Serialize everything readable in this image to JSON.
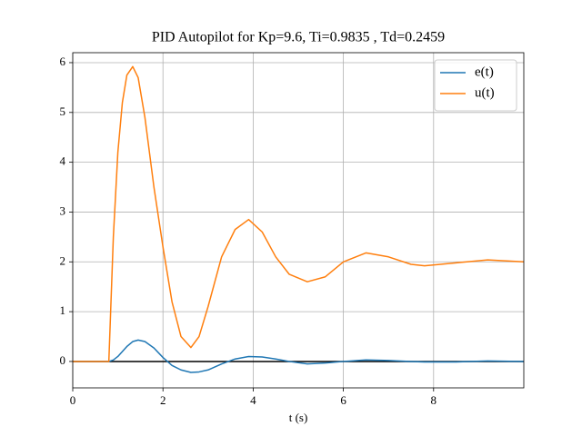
{
  "chart_data": {
    "type": "line",
    "title": "PID Autopilot for Kp=9.6, Ti=0.9835 , Td=0.2459",
    "x_label": "t (s)",
    "x": [
      0,
      0.8,
      0.9,
      1.0,
      1.1,
      1.2,
      1.33,
      1.45,
      1.6,
      1.8,
      2.0,
      2.2,
      2.4,
      2.62,
      2.8,
      3.0,
      3.3,
      3.6,
      3.9,
      4.2,
      4.5,
      4.8,
      5.2,
      5.6,
      6.0,
      6.5,
      7.0,
      7.5,
      7.8,
      8.5,
      9.2,
      10
    ],
    "series": [
      {
        "name": "e(t)",
        "color": "#1f77b4",
        "values": [
          0,
          0,
          0.03,
          0.1,
          0.2,
          0.3,
          0.4,
          0.43,
          0.4,
          0.27,
          0.08,
          -0.08,
          -0.17,
          -0.22,
          -0.21,
          -0.17,
          -0.05,
          0.05,
          0.1,
          0.09,
          0.05,
          0.0,
          -0.05,
          -0.03,
          0.0,
          0.03,
          0.02,
          0.0,
          -0.01,
          -0.01,
          0.01,
          0
        ]
      },
      {
        "name": "u(t)",
        "color": "#ff7f0e",
        "values": [
          0,
          0,
          2.5,
          4.2,
          5.2,
          5.75,
          5.92,
          5.7,
          4.9,
          3.5,
          2.3,
          1.2,
          0.5,
          0.28,
          0.5,
          1.1,
          2.1,
          2.65,
          2.85,
          2.6,
          2.1,
          1.75,
          1.6,
          1.7,
          2.0,
          2.18,
          2.1,
          1.95,
          1.92,
          1.98,
          2.04,
          2.0
        ]
      }
    ],
    "reference_line": {
      "y": 0,
      "color": "#000000"
    },
    "xlim": [
      0,
      10
    ],
    "ylim": [
      -0.53,
      6.2
    ],
    "xticks": [
      0,
      2,
      4,
      6,
      8
    ],
    "yticks": [
      0,
      1,
      2,
      3,
      4,
      5,
      6
    ],
    "grid": true,
    "legend": "upper-right"
  }
}
